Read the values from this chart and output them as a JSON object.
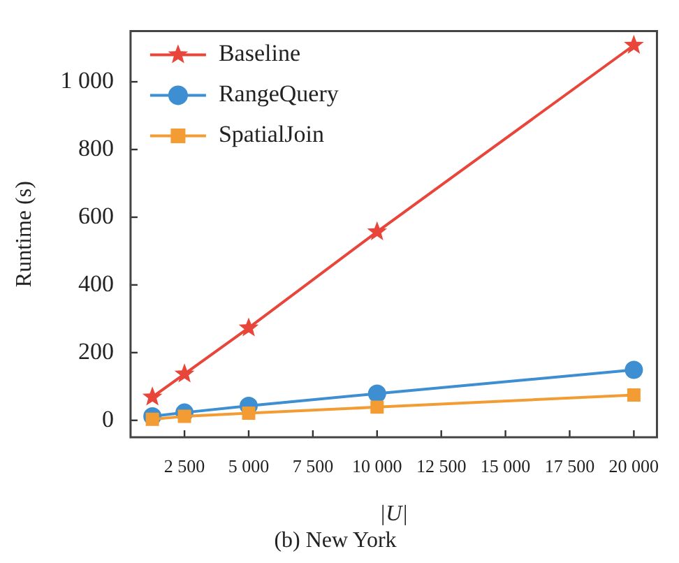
{
  "chart_data": {
    "type": "line",
    "title": "(b) New York",
    "xlabel": "|U|",
    "ylabel": "Runtime (s)",
    "x": [
      1250,
      2500,
      5000,
      10000,
      20000
    ],
    "series": [
      {
        "name": "Baseline",
        "color": "#e8463a",
        "marker": "star",
        "values": [
          69,
          137,
          273,
          557,
          1108
        ]
      },
      {
        "name": "RangeQuery",
        "color": "#3d8fd1",
        "marker": "circle",
        "values": [
          12,
          23,
          43,
          79,
          149
        ]
      },
      {
        "name": "SpatialJoin",
        "color": "#f29c33",
        "marker": "square",
        "values": [
          3,
          12,
          21,
          39,
          75
        ]
      }
    ],
    "xlim": [
      400,
      20900
    ],
    "ylim": [
      -50,
      1150
    ],
    "xticks": [
      {
        "value": 2500,
        "label": "2 500"
      },
      {
        "value": 5000,
        "label": "5 000"
      },
      {
        "value": 7500,
        "label": "7 500"
      },
      {
        "value": 10000,
        "label": "10 000"
      },
      {
        "value": 12500,
        "label": "12 500"
      },
      {
        "value": 15000,
        "label": "15 000"
      },
      {
        "value": 17500,
        "label": "17 500"
      },
      {
        "value": 20000,
        "label": "20 000"
      }
    ],
    "yticks": [
      0,
      200,
      400,
      600,
      800,
      {
        "value": 1000,
        "label": "1 000"
      }
    ],
    "grid": false,
    "legend": "top left",
    "line_style": "solid"
  }
}
